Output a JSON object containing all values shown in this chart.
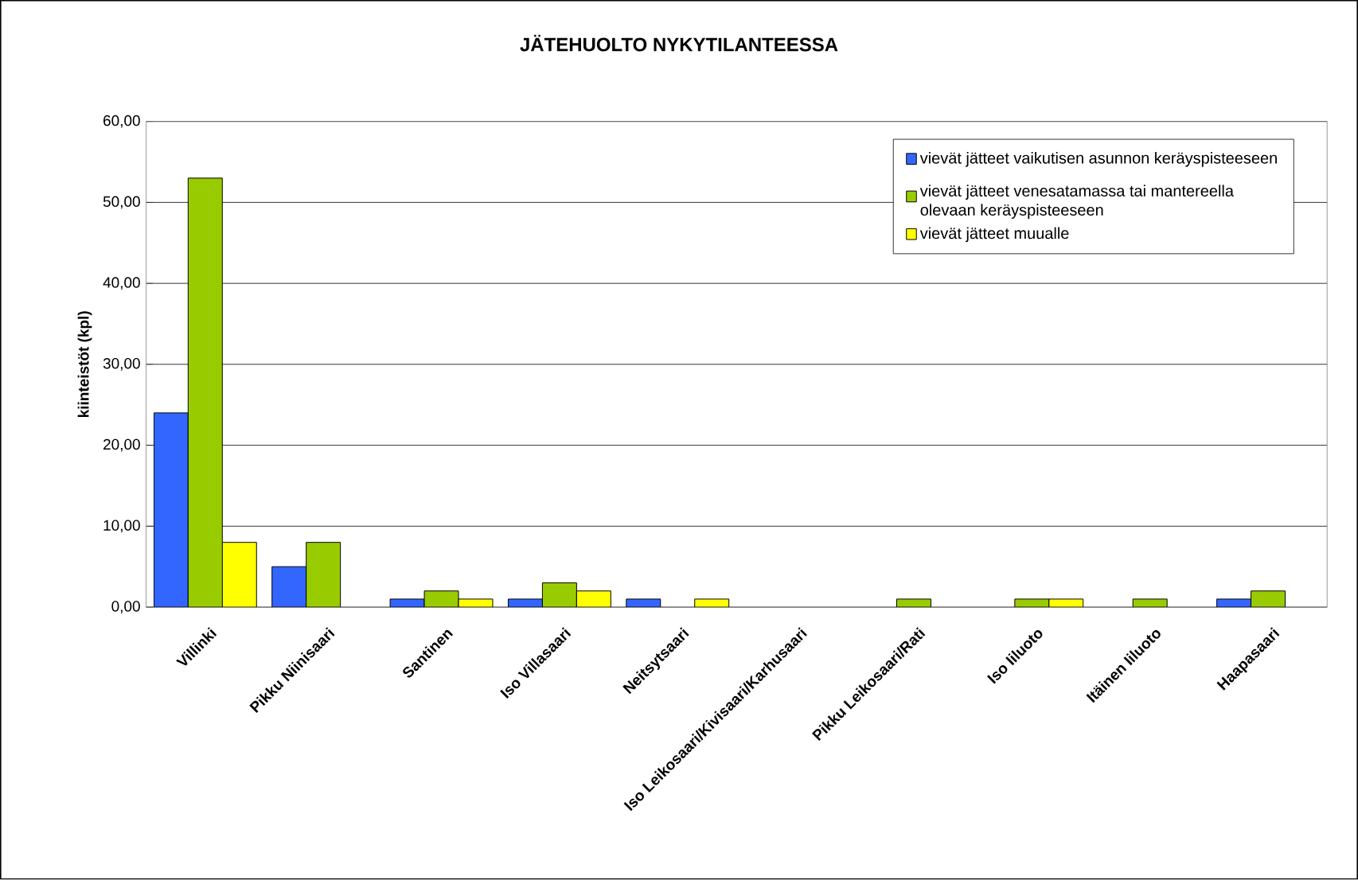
{
  "chart_data": {
    "type": "bar",
    "title": "JÄTEHUOLTO NYKYTILANTEESSA",
    "ylabel": "kiinteistöt (kpl)",
    "categories": [
      "Villinki",
      "Pikku Niinisaari",
      "Santinen",
      "Iso Villasaari",
      "Neitsytsaari",
      "Iso Leikosaari/Kivisaari/Karhusaari",
      "Pikku Leikosaari/Rati",
      "Iso Iiluoto",
      "Itäinen Iiluoto",
      "Haapasaari"
    ],
    "series": [
      {
        "name": "vievät jätteet vaikutisen asunnon keräyspisteeseen",
        "color": "#3366ff",
        "values": [
          24,
          5,
          1,
          1,
          1,
          null,
          null,
          null,
          null,
          1
        ]
      },
      {
        "name": "vievät jätteet venesatamassa tai mantereella olevaan keräyspisteeseen",
        "color": "#99cc00",
        "values": [
          53,
          8,
          2,
          3,
          null,
          null,
          1,
          1,
          1,
          2
        ]
      },
      {
        "name": "vievät jätteet muualle",
        "color": "#ffff00",
        "values": [
          8,
          null,
          1,
          2,
          1,
          null,
          null,
          1,
          null,
          null
        ]
      }
    ],
    "ylim": [
      0,
      60
    ],
    "yticks": [
      {
        "value": 0,
        "label": "0,00"
      },
      {
        "value": 10,
        "label": "10,00"
      },
      {
        "value": 20,
        "label": "20,00"
      },
      {
        "value": 30,
        "label": "30,00"
      },
      {
        "value": 40,
        "label": "40,00"
      },
      {
        "value": 50,
        "label": "50,00"
      },
      {
        "value": 60,
        "label": "60,00"
      }
    ],
    "grid": "y",
    "legend": "top right"
  }
}
